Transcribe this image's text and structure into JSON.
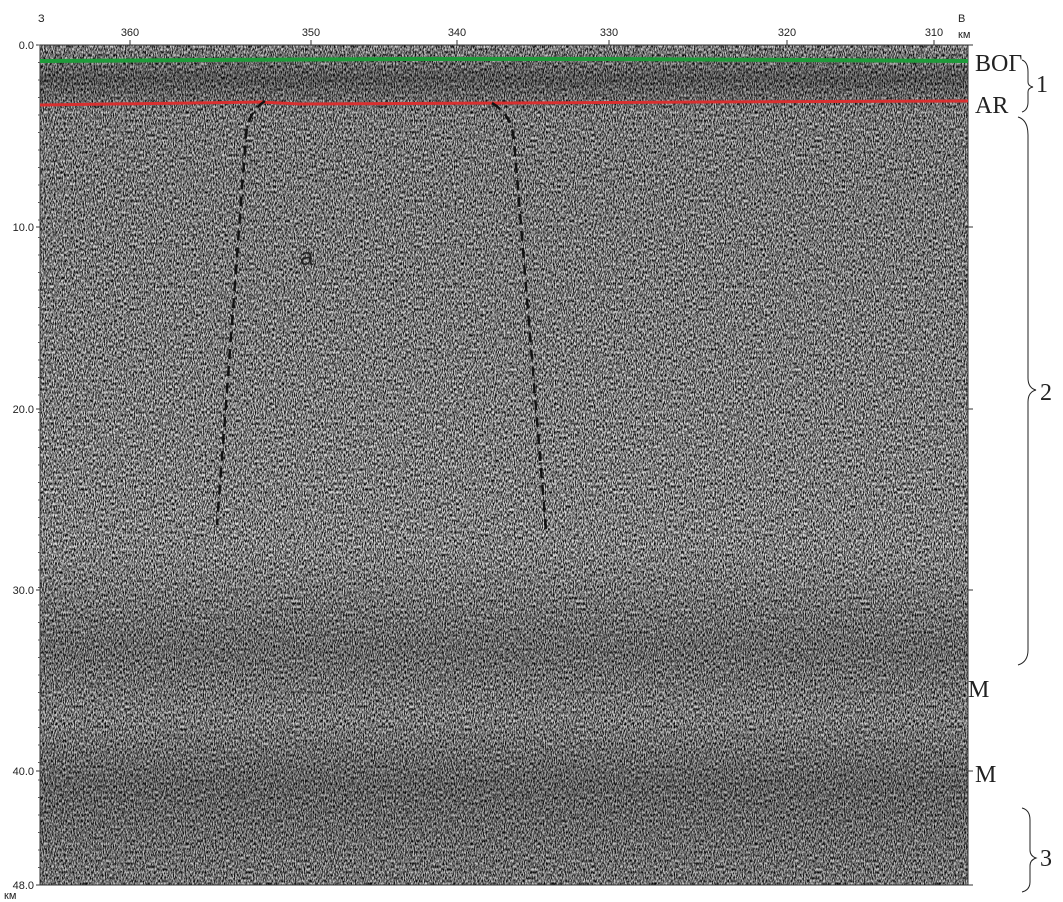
{
  "figure": {
    "west": "З",
    "east": "В",
    "unit_top": "км",
    "unit_bottom": "км",
    "depth_ticks": [
      "0.0",
      "10.0",
      "20.0",
      "30.0",
      "40.0",
      "48.0"
    ],
    "distance_ticks": [
      "360",
      "350",
      "340",
      "330",
      "320",
      "310"
    ],
    "horizons": [
      "ВОГ",
      "AR",
      "М",
      "М"
    ],
    "zones": [
      "1",
      "2",
      "3"
    ],
    "annotation": "а"
  }
}
